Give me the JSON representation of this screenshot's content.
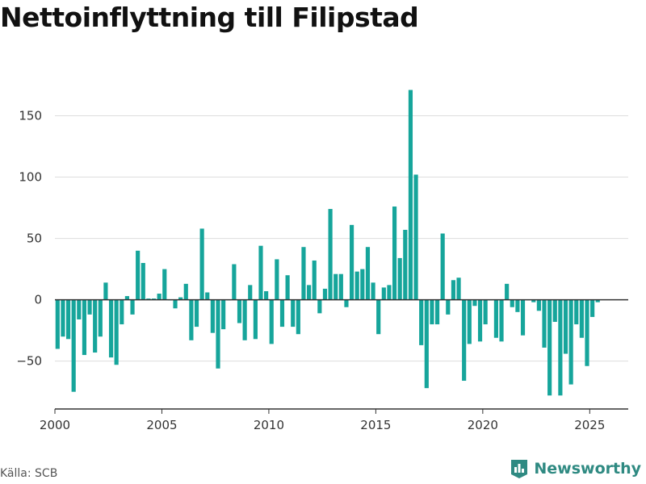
{
  "title": "Nettoinflyttning till Filipstad",
  "source": "Källa: SCB",
  "brand": "Newsworthy",
  "colors": {
    "bar": "#16a59b",
    "grid": "#dddddd",
    "zero": "#333333",
    "brand": "#2f8a82"
  },
  "brand_icon": "bar-chart-icon",
  "chart_data": {
    "type": "bar",
    "title": "Nettoinflyttning till Filipstad",
    "xlabel": "",
    "ylabel": "",
    "ylim": [
      -89,
      172
    ],
    "xlim": [
      2000,
      2026.8
    ],
    "yticks": [
      -50,
      0,
      50,
      100,
      150
    ],
    "ytick_labels": [
      "−50",
      "0",
      "50",
      "100",
      "150"
    ],
    "xticks": [
      2000,
      2005,
      2010,
      2015,
      2020,
      2025
    ],
    "xtick_labels": [
      "2000",
      "2005",
      "2010",
      "2015",
      "2020",
      "2025"
    ],
    "grid": true,
    "x_start": "2000-01",
    "frequency": "quarterly",
    "values": [
      -40,
      -30,
      -32,
      -75,
      -16,
      -45,
      -12,
      -43,
      -30,
      14,
      -47,
      -53,
      -20,
      3,
      -12,
      40,
      30,
      1,
      1,
      5,
      25,
      0,
      -7,
      2,
      13,
      -33,
      -22,
      58,
      6,
      -27,
      -56,
      -24,
      0,
      29,
      -19,
      -33,
      12,
      -32,
      44,
      7,
      -36,
      33,
      -22,
      20,
      -22,
      -28,
      43,
      12,
      32,
      -11,
      9,
      74,
      21,
      21,
      -6,
      61,
      23,
      25,
      43,
      14,
      -28,
      10,
      12,
      76,
      34,
      57,
      171,
      102,
      -37,
      -72,
      -20,
      -20,
      54,
      -12,
      16,
      18,
      -66,
      -36,
      -5,
      -34,
      -20,
      0,
      -31,
      -34,
      13,
      -6,
      -10,
      -29,
      0,
      -2,
      -9,
      -39,
      -78,
      -18,
      -78,
      -44,
      -69,
      -20,
      -31,
      -54,
      -14,
      -2
    ]
  }
}
